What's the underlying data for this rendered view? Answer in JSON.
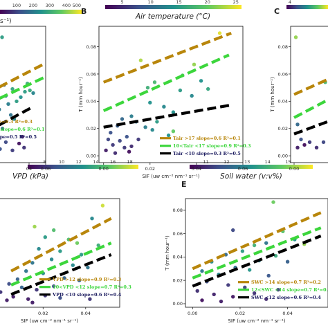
{
  "figure": {
    "colorbar_gradient": [
      "#440154",
      "#3b528b",
      "#21918c",
      "#5ec962",
      "#fde725"
    ]
  },
  "chart_data": [
    {
      "panel": "A",
      "type": "scatter",
      "colorbar": {
        "label_visible": "s⁻¹)",
        "ticks": [
          "100",
          "200",
          "300",
          "400",
          "500"
        ]
      },
      "xlabel": "",
      "ylabel": "",
      "xlim": [
        -0.02,
        0.06
      ],
      "ylim": [
        -0.005,
        0.095
      ],
      "xticks": [
        "04",
        "0.06"
      ],
      "xtick_values": [
        0.04,
        0.06
      ],
      "yticks": [],
      "series": [
        {
          "name": "",
          "legend": "ope=0.3 R²=0.3",
          "color": "#b8860b",
          "slope": 0.3,
          "x": [
            -0.01,
            0.06
          ],
          "y": [
            0.046,
            0.068
          ]
        },
        {
          "name": "",
          "legend": "00 slope=0.6 R²=0.1",
          "color": "#3cd63c",
          "slope": 0.6,
          "x": [
            -0.01,
            0.06
          ],
          "y": [
            0.038,
            0.058
          ]
        },
        {
          "name": "",
          "legend": "slope=0.5 R²=0.5",
          "color": "#000000",
          "slope": 0.5,
          "x": [
            -0.01,
            0.045
          ],
          "y": [
            0.018,
            0.036
          ]
        }
      ],
      "points": [
        {
          "x": 0.0075,
          "y": 0.087,
          "c": 0.55
        },
        {
          "x": 0.035,
          "y": 0.047,
          "c": 0.55
        },
        {
          "x": 0.038,
          "y": 0.053,
          "c": 0.62
        },
        {
          "x": 0.041,
          "y": 0.048,
          "c": 0.6
        },
        {
          "x": 0.02,
          "y": 0.049,
          "c": 0.58
        },
        {
          "x": 0.03,
          "y": 0.043,
          "c": 0.5
        },
        {
          "x": 0.025,
          "y": 0.04,
          "c": 0.55
        },
        {
          "x": 0.045,
          "y": 0.046,
          "c": 0.45
        },
        {
          "x": 0.01,
          "y": 0.052,
          "c": 0.3
        },
        {
          "x": 0.012,
          "y": 0.044,
          "c": 0.35
        },
        {
          "x": 0.015,
          "y": 0.038,
          "c": 0.42
        },
        {
          "x": 0.004,
          "y": 0.034,
          "c": 0.4
        },
        {
          "x": 0.0,
          "y": 0.029,
          "c": 0.5
        },
        {
          "x": 0.018,
          "y": 0.03,
          "c": 0.38
        },
        {
          "x": 0.022,
          "y": 0.027,
          "c": 0.45
        },
        {
          "x": 0.008,
          "y": 0.02,
          "c": 0.35
        },
        {
          "x": 0.032,
          "y": 0.014,
          "c": 0.1
        },
        {
          "x": 0.028,
          "y": 0.009,
          "c": 0.05
        },
        {
          "x": 0.034,
          "y": 0.006,
          "c": 0.15
        },
        {
          "x": 0.0,
          "y": 0.008,
          "c": 0.3
        },
        {
          "x": 0.005,
          "y": 0.005,
          "c": 0.25
        },
        {
          "x": 0.012,
          "y": 0.01,
          "c": 0.22
        },
        {
          "x": 0.02,
          "y": 0.004,
          "c": 0.18
        }
      ]
    },
    {
      "panel": "B",
      "type": "scatter",
      "colorbar": {
        "label": "Air temperature (°C)",
        "ticks": [
          "5",
          "10",
          "15",
          "20",
          "25"
        ],
        "tick_values": [
          5,
          10,
          15,
          20,
          25
        ],
        "range": [
          2,
          26
        ]
      },
      "xlabel": "SIF (uw cm⁻² nm⁻¹ sr⁻¹)",
      "ylabel": "T (mm hour⁻¹)",
      "xlim": [
        -0.002,
        0.06
      ],
      "ylim": [
        -0.005,
        0.095
      ],
      "xticks": [
        "0.00",
        "0.02",
        "0.04",
        "0.06"
      ],
      "xtick_values": [
        0.0,
        0.02,
        0.04,
        0.06
      ],
      "yticks": [
        "0.00",
        "0.02",
        "0.04",
        "0.06",
        "0.08"
      ],
      "ytick_values": [
        0.0,
        0.02,
        0.04,
        0.06,
        0.08
      ],
      "series": [
        {
          "name": "",
          "legend": "Tair >17 slope=0.6 R²=0.1",
          "color": "#b8860b",
          "slope": 0.6,
          "x": [
            0.0,
            0.055
          ],
          "y": [
            0.054,
            0.09
          ]
        },
        {
          "name": "",
          "legend": "10<Tair <17 slope=0.9 R²=0.3",
          "color": "#3cd63c",
          "slope": 0.9,
          "x": [
            0.0,
            0.054
          ],
          "y": [
            0.033,
            0.074
          ]
        },
        {
          "name": "",
          "legend": "Tair <10 slope=0.3 R²=0.5",
          "color": "#000000",
          "slope": 0.3,
          "x": [
            0.0,
            0.054
          ],
          "y": [
            0.021,
            0.037
          ]
        }
      ],
      "points": [
        {
          "x": 0.05,
          "y": 0.09,
          "c": 25
        },
        {
          "x": 0.016,
          "y": 0.07,
          "c": 23
        },
        {
          "x": 0.039,
          "y": 0.067,
          "c": 22
        },
        {
          "x": 0.019,
          "y": 0.05,
          "c": 17
        },
        {
          "x": 0.022,
          "y": 0.054,
          "c": 18
        },
        {
          "x": 0.034,
          "y": 0.059,
          "c": 19
        },
        {
          "x": 0.033,
          "y": 0.048,
          "c": 15
        },
        {
          "x": 0.042,
          "y": 0.055,
          "c": 14
        },
        {
          "x": 0.045,
          "y": 0.049,
          "c": 16
        },
        {
          "x": 0.038,
          "y": 0.044,
          "c": 13
        },
        {
          "x": 0.02,
          "y": 0.039,
          "c": 14
        },
        {
          "x": 0.026,
          "y": 0.036,
          "c": 13
        },
        {
          "x": 0.03,
          "y": 0.032,
          "c": 14
        },
        {
          "x": 0.012,
          "y": 0.029,
          "c": 12
        },
        {
          "x": 0.014,
          "y": 0.025,
          "c": 11
        },
        {
          "x": 0.023,
          "y": 0.025,
          "c": 15
        },
        {
          "x": 0.008,
          "y": 0.027,
          "c": 10
        },
        {
          "x": 0.006,
          "y": 0.022,
          "c": 9
        },
        {
          "x": 0.018,
          "y": 0.021,
          "c": 12
        },
        {
          "x": 0.021,
          "y": 0.019,
          "c": 13
        },
        {
          "x": 0.003,
          "y": 0.017,
          "c": 8
        },
        {
          "x": 0.002,
          "y": 0.012,
          "c": 7
        },
        {
          "x": 0.004,
          "y": 0.008,
          "c": 6
        },
        {
          "x": 0.007,
          "y": 0.011,
          "c": 7
        },
        {
          "x": 0.009,
          "y": 0.006,
          "c": 6
        },
        {
          "x": 0.01,
          "y": 0.014,
          "c": 8
        },
        {
          "x": 0.012,
          "y": 0.007,
          "c": 5
        },
        {
          "x": 0.015,
          "y": 0.012,
          "c": 6
        },
        {
          "x": 0.001,
          "y": 0.004,
          "c": 4
        },
        {
          "x": 0.011,
          "y": 0.003,
          "c": 3
        },
        {
          "x": 0.005,
          "y": 0.002,
          "c": 5
        },
        {
          "x": 0.03,
          "y": 0.018,
          "c": 20
        },
        {
          "x": 0.028,
          "y": 0.015,
          "c": 14
        }
      ]
    },
    {
      "panel": "C",
      "type": "scatter",
      "colorbar": {
        "label": "",
        "ticks": [
          "4"
        ],
        "tick_values": [
          4
        ],
        "range": [
          2,
          26
        ]
      },
      "xlabel": "",
      "ylabel": "T (mm hour⁻¹)",
      "xlim": [
        -0.002,
        0.03
      ],
      "ylim": [
        -0.005,
        0.095
      ],
      "xticks": [
        "0.00"
      ],
      "xtick_values": [
        0.0
      ],
      "yticks": [
        "0.00",
        "0.02",
        "0.04",
        "0.06",
        "0.08"
      ],
      "ytick_values": [
        0.0,
        0.02,
        0.04,
        0.06,
        0.08
      ],
      "series": [
        {
          "name": "",
          "legend": "",
          "color": "#b8860b",
          "x": [
            0.0,
            0.03
          ],
          "y": [
            0.045,
            0.062
          ]
        },
        {
          "name": "",
          "legend": "",
          "color": "#3cd63c",
          "x": [
            0.0,
            0.03
          ],
          "y": [
            0.028,
            0.048
          ]
        },
        {
          "name": "",
          "legend": "",
          "color": "#000000",
          "x": [
            0.0,
            0.03
          ],
          "y": [
            0.016,
            0.03
          ]
        }
      ],
      "points": [
        {
          "x": 0.001,
          "y": 0.087,
          "c": 22
        },
        {
          "x": 0.018,
          "y": 0.054,
          "c": 18
        },
        {
          "x": 0.025,
          "y": 0.045,
          "c": 15
        },
        {
          "x": 0.026,
          "y": 0.031,
          "c": 14
        },
        {
          "x": 0.021,
          "y": 0.036,
          "c": 13
        },
        {
          "x": 0.002,
          "y": 0.023,
          "c": 10
        },
        {
          "x": 0.004,
          "y": 0.012,
          "c": 8
        },
        {
          "x": 0.002,
          "y": 0.006,
          "c": 4
        },
        {
          "x": 0.006,
          "y": 0.008,
          "c": 3
        },
        {
          "x": 0.009,
          "y": 0.01,
          "c": 6
        },
        {
          "x": 0.013,
          "y": 0.006,
          "c": 5
        },
        {
          "x": 0.017,
          "y": 0.01,
          "c": 7
        },
        {
          "x": 0.021,
          "y": 0.006,
          "c": 4
        },
        {
          "x": 0.024,
          "y": 0.012,
          "c": 9
        }
      ]
    },
    {
      "panel": "D",
      "type": "scatter",
      "colorbar": {
        "label": "VPD (kPa)",
        "ticks": [
          "8",
          "10",
          "12",
          "14",
          "16",
          "18"
        ],
        "tick_values": [
          8,
          10,
          12,
          14,
          16,
          18
        ],
        "range": [
          6,
          19
        ]
      },
      "xlabel": "SIF (uw cm⁻² nm⁻¹ sr⁻¹)",
      "ylabel": "",
      "xlim": [
        -0.01,
        0.056
      ],
      "ylim": [
        -0.003,
        0.09
      ],
      "xticks": [
        "0.02",
        "0.04"
      ],
      "xtick_values": [
        0.02,
        0.04
      ],
      "yticks": [],
      "series": [
        {
          "name": "",
          "legend": "VPD >12 slope=0.9 R²=0.3",
          "color": "#b8860b",
          "slope": 0.9,
          "x": [
            0.005,
            0.052
          ],
          "y": [
            0.028,
            0.073
          ]
        },
        {
          "name": "",
          "legend": "10<VPD <12 slope=0.7 R²=0.3",
          "color": "#3cd63c",
          "slope": 0.7,
          "x": [
            0.005,
            0.052
          ],
          "y": [
            0.016,
            0.052
          ]
        },
        {
          "name": "",
          "legend": "VPD <10 slope=0.6 R²=0.4",
          "color": "#000000",
          "slope": 0.6,
          "x": [
            0.005,
            0.052
          ],
          "y": [
            0.008,
            0.042
          ]
        }
      ],
      "points": [
        {
          "x": 0.048,
          "y": 0.084,
          "c": 18
        },
        {
          "x": 0.016,
          "y": 0.066,
          "c": 17
        },
        {
          "x": 0.043,
          "y": 0.073,
          "c": 12
        },
        {
          "x": 0.025,
          "y": 0.063,
          "c": 15
        },
        {
          "x": 0.021,
          "y": 0.057,
          "c": 13
        },
        {
          "x": 0.032,
          "y": 0.055,
          "c": 15
        },
        {
          "x": 0.036,
          "y": 0.052,
          "c": 16
        },
        {
          "x": 0.046,
          "y": 0.05,
          "c": 14
        },
        {
          "x": 0.018,
          "y": 0.047,
          "c": 12
        },
        {
          "x": 0.028,
          "y": 0.045,
          "c": 13
        },
        {
          "x": 0.038,
          "y": 0.042,
          "c": 13
        },
        {
          "x": 0.024,
          "y": 0.038,
          "c": 12
        },
        {
          "x": 0.015,
          "y": 0.035,
          "c": 11
        },
        {
          "x": 0.034,
          "y": 0.033,
          "c": 12
        },
        {
          "x": 0.041,
          "y": 0.031,
          "c": 11
        },
        {
          "x": 0.012,
          "y": 0.028,
          "c": 11
        },
        {
          "x": 0.02,
          "y": 0.026,
          "c": 12
        },
        {
          "x": 0.03,
          "y": 0.022,
          "c": 10
        },
        {
          "x": 0.008,
          "y": 0.021,
          "c": 10
        },
        {
          "x": 0.037,
          "y": 0.02,
          "c": 10
        },
        {
          "x": 0.004,
          "y": 0.017,
          "c": 9
        },
        {
          "x": 0.01,
          "y": 0.014,
          "c": 10
        },
        {
          "x": 0.017,
          "y": 0.012,
          "c": 8
        },
        {
          "x": 0.025,
          "y": 0.015,
          "c": 9
        },
        {
          "x": 0.0,
          "y": 0.01,
          "c": 8
        },
        {
          "x": 0.006,
          "y": 0.006,
          "c": 7
        },
        {
          "x": 0.013,
          "y": 0.004,
          "c": 7
        },
        {
          "x": 0.021,
          "y": 0.007,
          "c": 8
        },
        {
          "x": 0.003,
          "y": 0.003,
          "c": 7
        },
        {
          "x": 0.028,
          "y": 0.005,
          "c": 9
        },
        {
          "x": 0.042,
          "y": 0.004,
          "c": 8
        },
        {
          "x": 0.015,
          "y": 0.001,
          "c": 7
        }
      ]
    },
    {
      "panel": "E",
      "type": "scatter",
      "colorbar": {
        "label": "Soil water (v:v%)",
        "ticks": [
          "11",
          "12",
          "13",
          "14",
          "15"
        ],
        "tick_values": [
          11,
          12,
          13,
          14,
          15
        ],
        "range": [
          10.2,
          16.2
        ]
      },
      "xlabel": "SIF (uw cm⁻² nm⁻¹ sr⁻¹)",
      "ylabel": "T (mm hour⁻¹)",
      "xlim": [
        -0.003,
        0.057
      ],
      "ylim": [
        -0.003,
        0.09
      ],
      "xticks": [
        "0.00",
        "0.02",
        "0.04"
      ],
      "xtick_values": [
        0.0,
        0.02,
        0.04
      ],
      "yticks": [
        "0.00",
        "0.02",
        "0.04",
        "0.06",
        "0.08"
      ],
      "ytick_values": [
        0.0,
        0.02,
        0.04,
        0.06,
        0.08
      ],
      "series": [
        {
          "name": "",
          "legend": "SWC >14 slope=0.7 R²=0.2",
          "color": "#b8860b",
          "slope": 0.7,
          "x": [
            0.0,
            0.054
          ],
          "y": [
            0.03,
            0.078
          ]
        },
        {
          "name": "",
          "legend": "12<SWC <14 slope=0.7 R²=0.3",
          "color": "#3cd63c",
          "slope": 0.7,
          "x": [
            0.0,
            0.054
          ],
          "y": [
            0.022,
            0.065
          ]
        },
        {
          "name": "",
          "legend": "SWC <12 slope=0.6 R²=0.4",
          "color": "#000000",
          "slope": 0.6,
          "x": [
            0.0,
            0.054
          ],
          "y": [
            0.015,
            0.058
          ]
        }
      ],
      "points": [
        {
          "x": 0.034,
          "y": 0.087,
          "c": 14.8
        },
        {
          "x": 0.017,
          "y": 0.063,
          "c": 11.5
        },
        {
          "x": 0.038,
          "y": 0.062,
          "c": 14.5
        },
        {
          "x": 0.043,
          "y": 0.055,
          "c": 13.2
        },
        {
          "x": 0.026,
          "y": 0.05,
          "c": 14.0
        },
        {
          "x": 0.031,
          "y": 0.052,
          "c": 12.5
        },
        {
          "x": 0.047,
          "y": 0.051,
          "c": 15.2
        },
        {
          "x": 0.021,
          "y": 0.045,
          "c": 13.5
        },
        {
          "x": 0.014,
          "y": 0.042,
          "c": 12.2
        },
        {
          "x": 0.035,
          "y": 0.041,
          "c": 13.8
        },
        {
          "x": 0.028,
          "y": 0.037,
          "c": 12.8
        },
        {
          "x": 0.04,
          "y": 0.036,
          "c": 12.0
        },
        {
          "x": 0.008,
          "y": 0.036,
          "c": 13.0
        },
        {
          "x": 0.018,
          "y": 0.031,
          "c": 12.4
        },
        {
          "x": 0.024,
          "y": 0.029,
          "c": 13.3
        },
        {
          "x": 0.004,
          "y": 0.028,
          "c": 12.6
        },
        {
          "x": 0.011,
          "y": 0.025,
          "c": 12.9
        },
        {
          "x": 0.032,
          "y": 0.024,
          "c": 11.8
        },
        {
          "x": 0.006,
          "y": 0.019,
          "c": 11.6
        },
        {
          "x": 0.015,
          "y": 0.016,
          "c": 11.2
        },
        {
          "x": 0.022,
          "y": 0.014,
          "c": 11.4
        },
        {
          "x": 0.002,
          "y": 0.011,
          "c": 11.0
        },
        {
          "x": 0.009,
          "y": 0.008,
          "c": 10.8
        },
        {
          "x": 0.017,
          "y": 0.006,
          "c": 10.6
        },
        {
          "x": 0.026,
          "y": 0.009,
          "c": 11.1
        },
        {
          "x": 0.004,
          "y": 0.003,
          "c": 10.5
        },
        {
          "x": 0.012,
          "y": 0.002,
          "c": 10.7
        },
        {
          "x": 0.031,
          "y": 0.004,
          "c": 10.9
        },
        {
          "x": 0.036,
          "y": 0.012,
          "c": 11.3
        }
      ]
    }
  ]
}
